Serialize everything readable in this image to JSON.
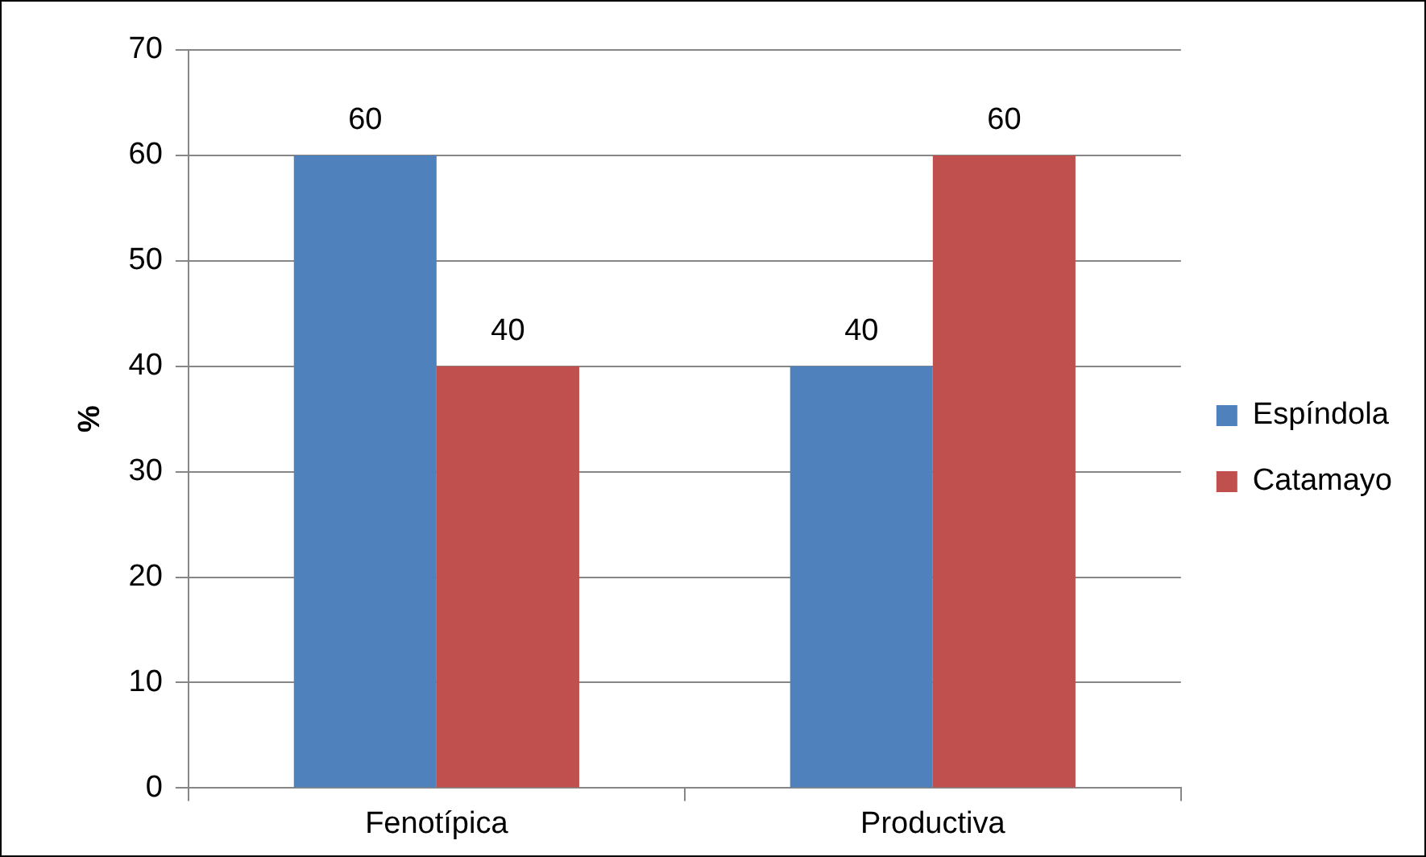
{
  "chart_data": {
    "type": "bar",
    "ylabel": "%",
    "categories": [
      "Fenotípica",
      "Productiva"
    ],
    "series": [
      {
        "name": "Espíndola",
        "color": "#4f81bd",
        "values": [
          60,
          40
        ]
      },
      {
        "name": "Catamayo",
        "color": "#c0504d",
        "values": [
          40,
          60
        ]
      }
    ],
    "ylim": [
      0,
      70
    ],
    "yticks": [
      0,
      10,
      20,
      30,
      40,
      50,
      60,
      70
    ],
    "grid": "y",
    "legend": "right",
    "data_labels": true
  }
}
